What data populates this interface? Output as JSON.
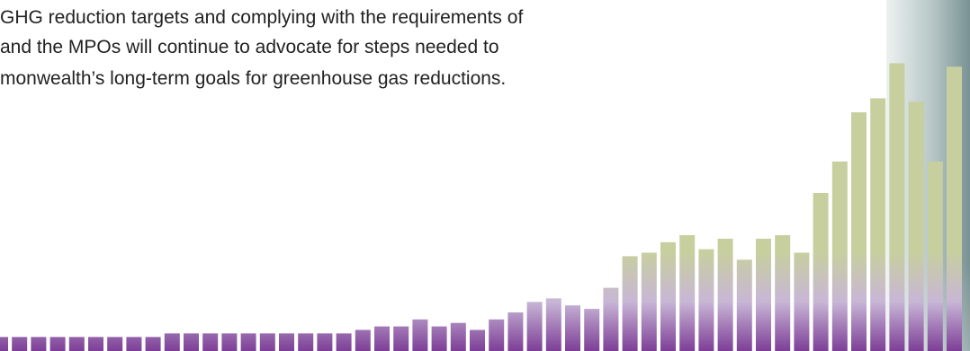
{
  "text_lines": [
    "GHG reduction targets and complying with the requirements of",
    "and the MPOs will continue to advocate for steps needed to",
    "monwealth’s long-term goals for greenhouse gas reductions."
  ],
  "decoration": {
    "bar_colors": {
      "top": "#c7cf9f",
      "mid": "#c8b6d6",
      "bottom": "#7d3e97"
    },
    "bar_levels": [
      0.04,
      0.04,
      0.04,
      0.04,
      0.04,
      0.04,
      0.04,
      0.04,
      0.04,
      0.05,
      0.05,
      0.05,
      0.05,
      0.05,
      0.05,
      0.05,
      0.05,
      0.05,
      0.05,
      0.06,
      0.07,
      0.07,
      0.09,
      0.07,
      0.08,
      0.06,
      0.09,
      0.11,
      0.14,
      0.15,
      0.13,
      0.12,
      0.18,
      0.27,
      0.28,
      0.31,
      0.33,
      0.29,
      0.32,
      0.26,
      0.32,
      0.33,
      0.28,
      0.45,
      0.54,
      0.68,
      0.72,
      0.82,
      0.71,
      0.54,
      0.81
    ],
    "panel_colors": [
      "#eef2f1",
      "#b6c6c6",
      "#7a9294"
    ]
  }
}
